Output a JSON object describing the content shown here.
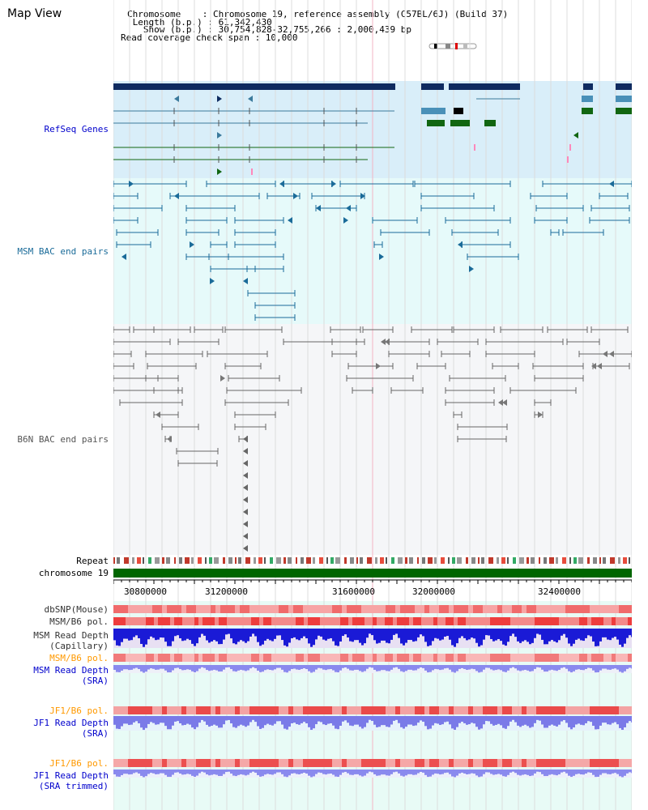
{
  "header": {
    "title": "Map View",
    "info_lines": [
      "Chromosome    : Chromosome 19, reference assembly (C57BL/6J) (Build 37)",
      " Length (b.p.) : 61,342,430",
      "   Show (b.p.) : 30,754,828-32,755,266 : 2,000,439 bp",
      "Read coverage check span : 10,000"
    ]
  },
  "tracks": {
    "refseq": {
      "label": "RefSeq Genes",
      "color": "#0000cc",
      "bg": "#d9eef9"
    },
    "msm_bac": {
      "label": "MSM BAC end pairs",
      "color": "#1a6b99",
      "bg": "#e6fafa"
    },
    "b6n_bac": {
      "label": "B6N BAC end pairs",
      "color": "#555555",
      "bg": "#f5f6f8"
    },
    "repeat": {
      "label": "Repeat"
    },
    "chromosome": {
      "label": "chromosome 19",
      "color": "#006600"
    },
    "dbsnp": {
      "label": "dbSNP(Mouse)",
      "color": "#333333"
    },
    "msm_b6_pol_1": {
      "label": "MSM/B6 pol.",
      "color": "#333333"
    },
    "msm_read_cap": {
      "label": "MSM Read Depth\n(Capillary)",
      "color": "#333333"
    },
    "msm_b6_pol_2": {
      "label": "MSM/B6 pol.",
      "color": "#ff9900"
    },
    "msm_read_sra": {
      "label": "MSM Read Depth\n(SRA)",
      "color": "#0000cc"
    },
    "jf1_b6_pol_1": {
      "label": "JF1/B6 pol.",
      "color": "#ff9900"
    },
    "jf1_read_sra": {
      "label": "JF1 Read Depth\n(SRA)",
      "color": "#0000cc"
    },
    "jf1_b6_pol_2": {
      "label": "JF1/B6 pol.",
      "color": "#ff9900"
    },
    "jf1_read_trim": {
      "label": "JF1 Read Depth\n(SRA trimmed)",
      "color": "#0000cc"
    }
  },
  "axis": {
    "ticks": [
      "30800000",
      "31200000",
      "31600000",
      "32000000",
      "32400000"
    ]
  }
}
